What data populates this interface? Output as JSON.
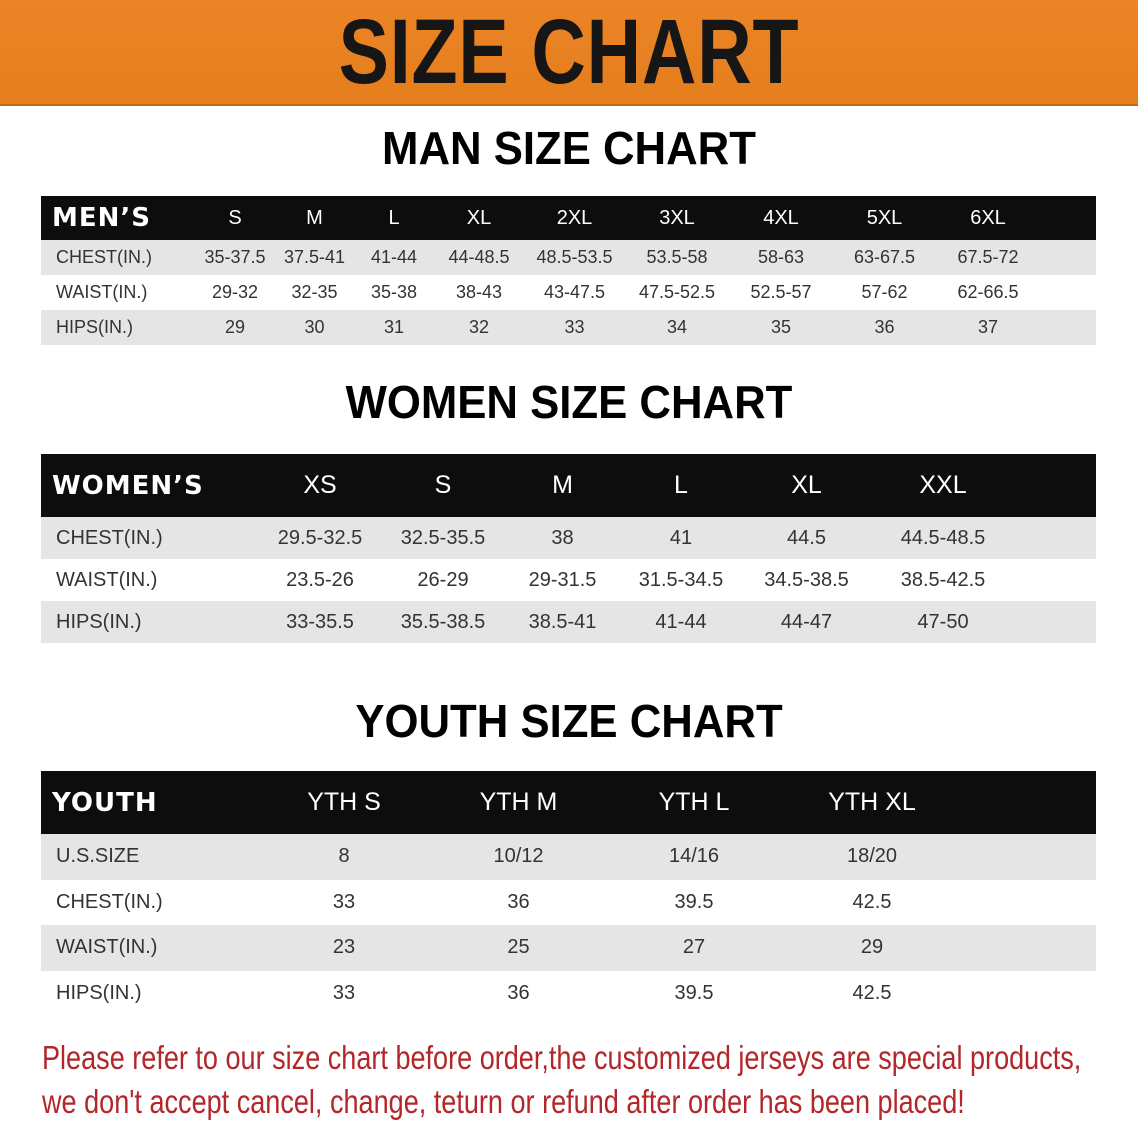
{
  "banner": {
    "title": "SIZE CHART",
    "color": "#e8801f"
  },
  "men": {
    "title": "MAN SIZE CHART",
    "header": [
      "MEN’S",
      "S",
      "M",
      "L",
      "XL",
      "2XL",
      "3XL",
      "4XL",
      "5XL",
      "6XL"
    ],
    "rows": [
      [
        "CHEST(IN.)",
        "35-37.5",
        "37.5-41",
        "41-44",
        "44-48.5",
        "48.5-53.5",
        "53.5-58",
        "58-63",
        "63-67.5",
        "67.5-72"
      ],
      [
        "WAIST(IN.)",
        "29-32",
        "32-35",
        "35-38",
        "38-43",
        "43-47.5",
        "47.5-52.5",
        "52.5-57",
        "57-62",
        "62-66.5"
      ],
      [
        "HIPS(IN.)",
        "29",
        "30",
        "31",
        "32",
        "33",
        "34",
        "35",
        "36",
        "37"
      ]
    ]
  },
  "women": {
    "title": "WOMEN SIZE CHART",
    "header": [
      "WOMEN’S",
      "XS",
      "S",
      "M",
      "L",
      "XL",
      "XXL"
    ],
    "rows": [
      [
        "CHEST(IN.)",
        "29.5-32.5",
        "32.5-35.5",
        "38",
        "41",
        "44.5",
        "44.5-48.5"
      ],
      [
        "WAIST(IN.)",
        "23.5-26",
        "26-29",
        "29-31.5",
        "31.5-34.5",
        "34.5-38.5",
        "38.5-42.5"
      ],
      [
        "HIPS(IN.)",
        "33-35.5",
        "35.5-38.5",
        "38.5-41",
        "41-44",
        "44-47",
        "47-50"
      ]
    ]
  },
  "youth": {
    "title": "YOUTH SIZE CHART",
    "header": [
      "YOUTH",
      "YTH S",
      "YTH M",
      "YTH L",
      "YTH XL"
    ],
    "rows": [
      [
        "U.S.SIZE",
        "8",
        "10/12",
        "14/16",
        "18/20"
      ],
      [
        "CHEST(IN.)",
        "33",
        "36",
        "39.5",
        "42.5"
      ],
      [
        "WAIST(IN.)",
        "23",
        "25",
        "27",
        "29"
      ],
      [
        "HIPS(IN.)",
        "33",
        "36",
        "39.5",
        "42.5"
      ]
    ]
  },
  "note": {
    "line1": "Please refer to our size chart before order,the customized jerseys are special products,",
    "line2": "we don't accept cancel, change, teturn or refund after order has been placed!",
    "color": "#b3262a"
  }
}
